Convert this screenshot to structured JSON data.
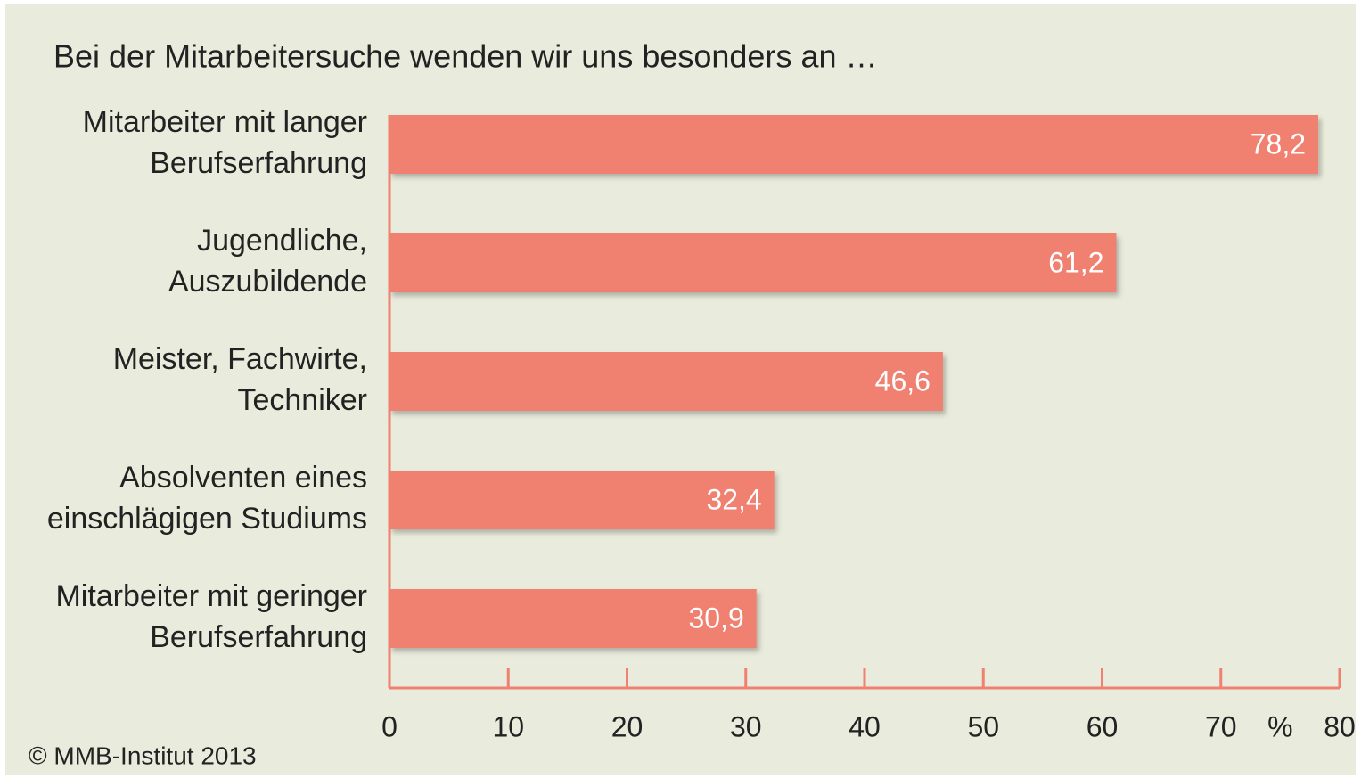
{
  "chart_data": {
    "type": "barh",
    "title": "Bei der Mitarbeitersuche wenden wir uns besonders an …",
    "categories": [
      [
        "Mitarbeiter mit langer",
        "Berufserfahrung"
      ],
      [
        "Jugendliche,",
        "Auszubildende"
      ],
      [
        "Meister, Fachwirte,",
        "Techniker"
      ],
      [
        "Absolventen eines",
        "einschlägigen Studiums"
      ],
      [
        "Mitarbeiter mit geringer",
        "Berufserfahrung"
      ]
    ],
    "values": [
      78.2,
      61.2,
      46.6,
      32.4,
      30.9
    ],
    "value_labels": [
      "78,2",
      "61,2",
      "46,6",
      "32,4",
      "30,9"
    ],
    "color": "#f08070",
    "xlim": [
      0,
      80
    ],
    "xticks": [
      0,
      10,
      20,
      30,
      40,
      50,
      60,
      70,
      80
    ],
    "xlabel": "%",
    "source": "© MMB-Institut 2013"
  }
}
